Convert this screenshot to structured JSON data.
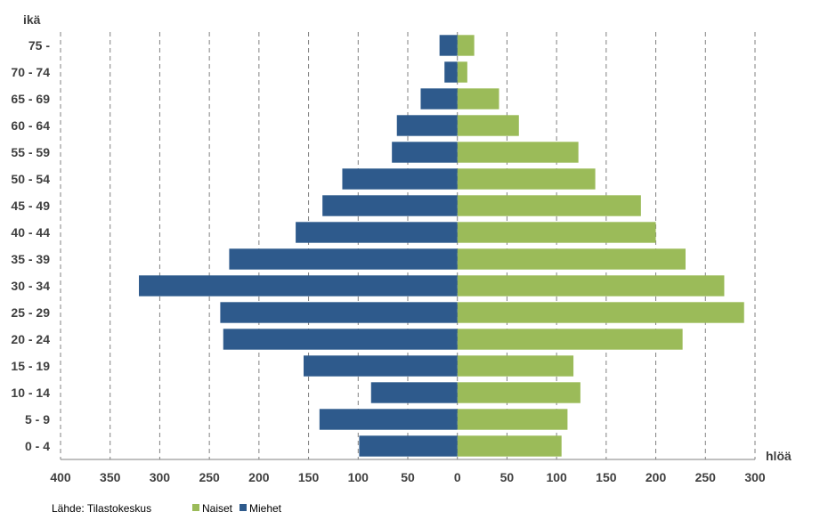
{
  "chart_data": {
    "type": "bar",
    "orientation": "horizontal",
    "variant": "population-pyramid",
    "ylabel": "ikä",
    "xlabel": "hlöä",
    "source": "Lähde: Tilastokeskus",
    "categories": [
      "0 - 4",
      "5 - 9",
      "10 - 14",
      "15 - 19",
      "20 - 24",
      "25 - 29",
      "30 - 34",
      "35 - 39",
      "40 - 44",
      "45 - 49",
      "50 - 54",
      "55 - 59",
      "60 - 64",
      "65 - 69",
      "70 - 74",
      "75 -"
    ],
    "series": [
      {
        "name": "Naiset",
        "color": "#9BBB59",
        "side": "right",
        "values": [
          105,
          111,
          124,
          117,
          227,
          289,
          269,
          230,
          200,
          185,
          139,
          122,
          62,
          42,
          10,
          17
        ]
      },
      {
        "name": "Miehet",
        "color": "#2E5A8C",
        "side": "left",
        "values": [
          99,
          139,
          87,
          155,
          236,
          239,
          321,
          230,
          163,
          136,
          116,
          66,
          61,
          37,
          13,
          18
        ]
      }
    ],
    "xlim": [
      -400,
      300
    ],
    "xticks": [
      -400,
      -350,
      -300,
      -250,
      -200,
      -150,
      -100,
      -50,
      0,
      50,
      100,
      150,
      200,
      250,
      300
    ],
    "xtick_labels": [
      "400",
      "350",
      "300",
      "250",
      "200",
      "150",
      "100",
      "50",
      "0",
      "50",
      "100",
      "150",
      "200",
      "250",
      "300"
    ],
    "grid": true,
    "legend": {
      "position": "bottom-left",
      "entries": [
        "Naiset",
        "Miehet"
      ]
    }
  }
}
